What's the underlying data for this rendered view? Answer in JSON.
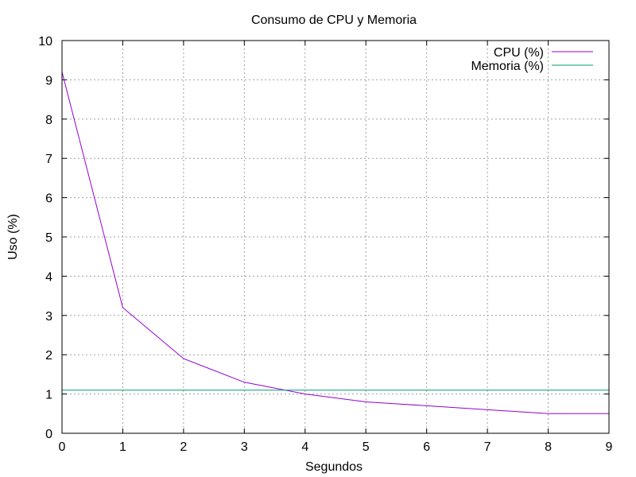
{
  "chart_data": {
    "type": "line",
    "title": "Consumo de CPU y Memoria",
    "xlabel": "Segundos",
    "ylabel": "Uso (%)",
    "xlim": [
      0,
      9
    ],
    "ylim": [
      0,
      10
    ],
    "xticks": [
      0,
      1,
      2,
      3,
      4,
      5,
      6,
      7,
      8,
      9
    ],
    "yticks": [
      0,
      1,
      2,
      3,
      4,
      5,
      6,
      7,
      8,
      9,
      10
    ],
    "grid": true,
    "legend_position": "top-right",
    "series": [
      {
        "name": "CPU (%)",
        "color": "#9400d3",
        "x": [
          0,
          1,
          2,
          3,
          4,
          5,
          6,
          7,
          8,
          9
        ],
        "y": [
          9.2,
          3.2,
          1.9,
          1.3,
          1.0,
          0.8,
          0.7,
          0.6,
          0.5,
          0.5
        ]
      },
      {
        "name": "Memoria (%)",
        "color": "#009e73",
        "x": [
          0,
          9
        ],
        "y": [
          1.1,
          1.1
        ]
      }
    ]
  }
}
